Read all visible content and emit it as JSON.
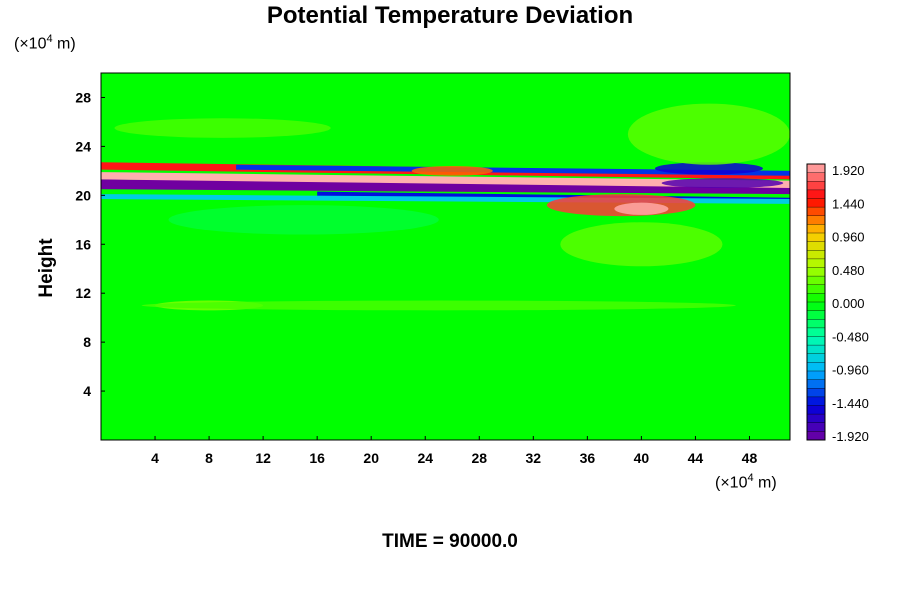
{
  "chart_data": {
    "type": "heatmap",
    "title": "Potential Temperature Deviation",
    "ylabel": "Height",
    "y_unit_prefix": "(×10",
    "y_unit_exp": "4",
    "y_unit_suffix": " m)",
    "x_unit_prefix": "(×10",
    "x_unit_exp": "4",
    "x_unit_suffix": " m)",
    "footer": "TIME = 90000.0",
    "xlim": [
      0,
      51
    ],
    "ylim": [
      0,
      30
    ],
    "x_ticks": [
      4,
      8,
      12,
      16,
      20,
      24,
      28,
      32,
      36,
      40,
      44,
      48
    ],
    "y_ticks": [
      4,
      8,
      12,
      16,
      20,
      24,
      28
    ],
    "colorbar_ticks": [
      "1.920",
      "1.440",
      "0.960",
      "0.480",
      "0.000",
      "-0.480",
      "-0.960",
      "-1.440",
      "-1.920"
    ],
    "colorbar_range": [
      -1.92,
      1.92
    ],
    "background_value": 0.0,
    "features": [
      {
        "shape": "band",
        "x": [
          0,
          51
        ],
        "y_start": 20.9,
        "y_end": 20.5,
        "thickness": 0.8,
        "value": -2.0
      },
      {
        "shape": "band",
        "x": [
          0,
          51
        ],
        "y_start": 21.6,
        "y_end": 20.9,
        "thickness": 0.6,
        "value": 2.0
      },
      {
        "shape": "band",
        "x": [
          0,
          51
        ],
        "y_start": 22.4,
        "y_end": 21.6,
        "thickness": 0.6,
        "value": 1.5
      },
      {
        "shape": "band",
        "x": [
          10,
          51
        ],
        "y_start": 22.3,
        "y_end": 21.8,
        "thickness": 0.4,
        "value": -1.3
      },
      {
        "shape": "band",
        "x": [
          16,
          51
        ],
        "y_start": 20.1,
        "y_end": 19.6,
        "thickness": 0.4,
        "value": -1.4
      },
      {
        "shape": "band",
        "x": [
          0,
          51
        ],
        "y_start": 19.9,
        "y_end": 19.5,
        "thickness": 0.4,
        "value": -0.8
      },
      {
        "shape": "blob",
        "x": 38.5,
        "y": 19.2,
        "rx": 5.5,
        "ry": 0.9,
        "value": 1.6
      },
      {
        "shape": "blob",
        "x": 40,
        "y": 18.9,
        "rx": 2,
        "ry": 0.5,
        "value": 1.9
      },
      {
        "shape": "blob",
        "x": 45,
        "y": 22.2,
        "rx": 4,
        "ry": 0.5,
        "value": -1.5
      },
      {
        "shape": "blob",
        "x": 46,
        "y": 21.0,
        "rx": 4.5,
        "ry": 0.4,
        "value": -1.8
      },
      {
        "shape": "blob",
        "x": 26,
        "y": 22.0,
        "rx": 3,
        "ry": 0.4,
        "value": 1.2
      },
      {
        "shape": "blob",
        "x": 8,
        "y": 11.0,
        "rx": 4,
        "ry": 0.4,
        "value": 0.35
      },
      {
        "shape": "blob",
        "x": 40,
        "y": 16.0,
        "rx": 6,
        "ry": 1.8,
        "value": 0.25
      },
      {
        "shape": "blob",
        "x": 45,
        "y": 25.0,
        "rx": 6,
        "ry": 2.5,
        "value": 0.25
      },
      {
        "shape": "blob",
        "x": 25,
        "y": 11.0,
        "rx": 22,
        "ry": 0.4,
        "value": 0.2
      },
      {
        "shape": "blob",
        "x": 15,
        "y": 18.0,
        "rx": 10,
        "ry": 1.2,
        "value": -0.15
      },
      {
        "shape": "blob",
        "x": 9,
        "y": 25.5,
        "rx": 8,
        "ry": 0.8,
        "value": 0.2
      }
    ]
  }
}
